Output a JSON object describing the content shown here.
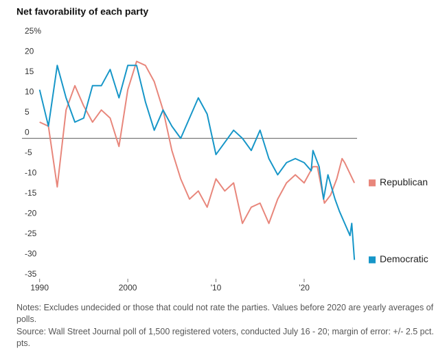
{
  "chart_data": {
    "type": "line",
    "title": "Net favorability of each party",
    "xlim": [
      1988,
      2026
    ],
    "xticks": [
      {
        "value": 1990,
        "label": "1990"
      },
      2000,
      {
        "value": 2010,
        "label": "'10"
      },
      {
        "value": 2020,
        "label": "’20"
      }
    ],
    "ylim": [
      -35,
      25
    ],
    "yticks": [
      {
        "value": 25,
        "label": "25%"
      },
      20,
      15,
      10,
      5,
      0,
      -5,
      -10,
      -15,
      -20,
      -25,
      -30,
      -35
    ],
    "grid": false,
    "series": [
      {
        "name": "Republican",
        "color": "#e8867b",
        "x": [
          1990,
          1991,
          1992,
          1993,
          1994,
          1995,
          1996,
          1997,
          1998,
          1999,
          2000,
          2001,
          2002,
          2003,
          2004,
          2005,
          2006,
          2007,
          2008,
          2009,
          2010,
          2011,
          2012,
          2013,
          2014,
          2015,
          2016,
          2017,
          2018,
          2019,
          2020,
          2020.5,
          2021,
          2021.5,
          2022.3,
          2023,
          2023.7,
          2024.3,
          2024.6,
          2025.7
        ],
        "values": [
          4,
          3,
          -12,
          7,
          13,
          8,
          4,
          7,
          5,
          -2,
          12,
          19,
          18,
          14,
          7,
          -3,
          -10,
          -15,
          -13,
          -17,
          -10,
          -13,
          -11,
          -21,
          -17,
          -16,
          -21,
          -15,
          -11,
          -9,
          -11,
          -9,
          -7,
          -7,
          -16,
          -14,
          -10,
          -5,
          -6,
          -11
        ]
      },
      {
        "name": "Democratic",
        "color": "#1696c8",
        "x": [
          1990,
          1991,
          1992,
          1993,
          1994,
          1995,
          1996,
          1997,
          1998,
          1999,
          2000,
          2001,
          2002,
          2003,
          2004,
          2005,
          2006,
          2007,
          2008,
          2009,
          2010,
          2011,
          2012,
          2013,
          2014,
          2015,
          2016,
          2017,
          2018,
          2019,
          2020,
          2020.8,
          2021,
          2021.7,
          2022.2,
          2022.7,
          2023.5,
          2024,
          2024.6,
          2025.2,
          2025.4,
          2025.7
        ],
        "values": [
          12,
          3,
          18,
          10,
          4,
          5,
          13,
          13,
          17,
          10,
          18,
          18,
          9,
          2,
          7,
          3,
          0,
          5,
          10,
          6,
          -4,
          -1,
          2,
          0,
          -3,
          2,
          -5,
          -9,
          -6,
          -5,
          -6,
          -8,
          -3,
          -7,
          -15,
          -9,
          -15,
          -18,
          -21,
          -24,
          -21,
          -30
        ]
      }
    ],
    "notes": "Notes: Excludes undecided or those that could not rate the parties. Values before 2020 are yearly averages of polls.",
    "source": "Source: Wall Street Journal poll of 1,500 registered voters, conducted July 16 - 20; margin of error: +/- 2.5 pct. pts."
  }
}
